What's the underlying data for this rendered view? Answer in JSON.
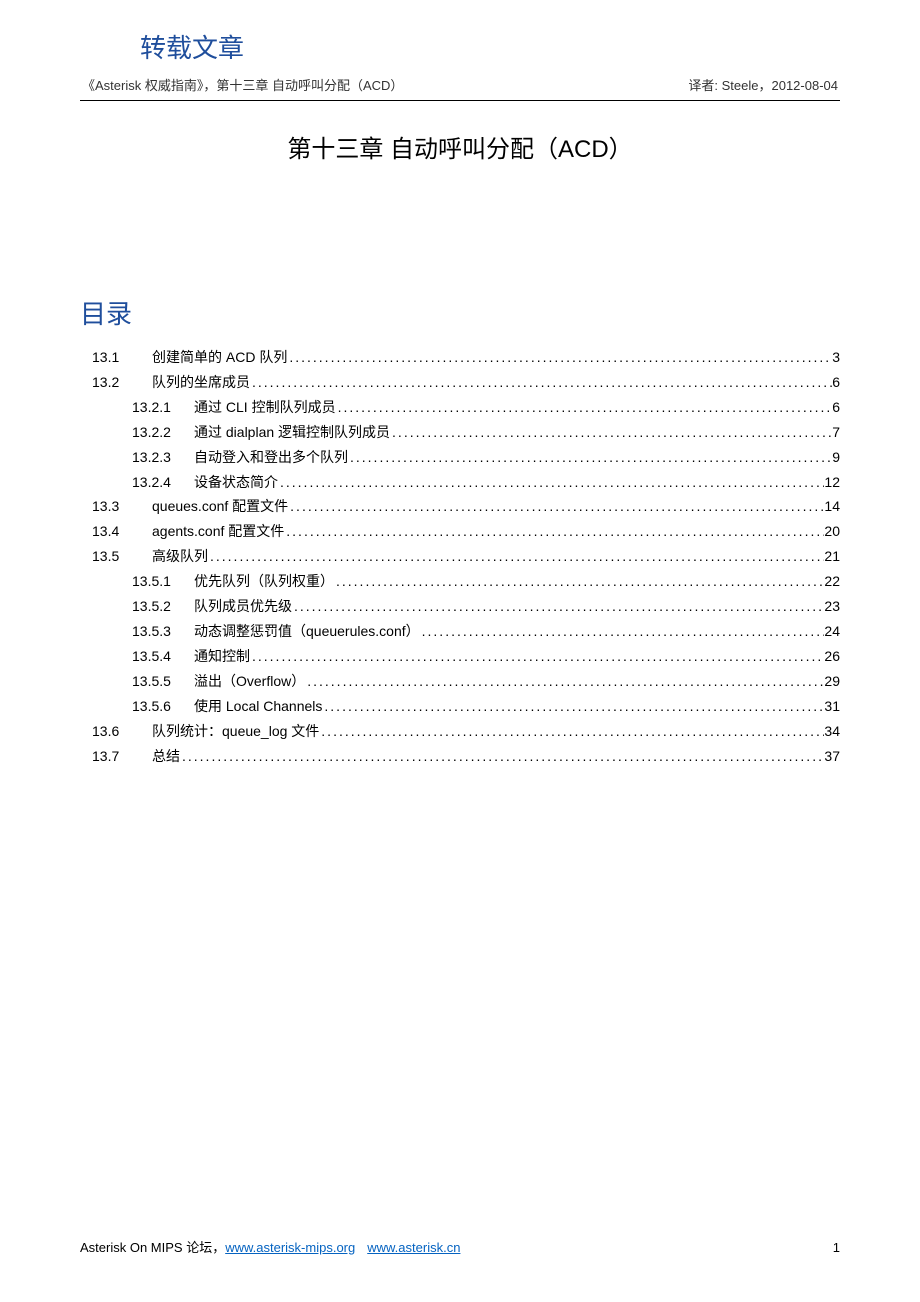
{
  "header": {
    "site_title": "转载文章",
    "doc_left": "《Asterisk 权威指南》，第十三章  自动呼叫分配（ACD）",
    "doc_right": "译者: Steele，2012-08-04"
  },
  "chapter_title": "第十三章  自动呼叫分配（ACD）",
  "toc_title": "目录",
  "toc": [
    {
      "level": 1,
      "num": "13.1",
      "text": "创建简单的 ACD 队列",
      "page": "3"
    },
    {
      "level": 1,
      "num": "13.2",
      "text": "队列的坐席成员",
      "page": "6"
    },
    {
      "level": 2,
      "num": "13.2.1",
      "text": "通过 CLI 控制队列成员",
      "page": "6"
    },
    {
      "level": 2,
      "num": "13.2.2",
      "text": "通过 dialplan 逻辑控制队列成员",
      "page": "7"
    },
    {
      "level": 2,
      "num": "13.2.3",
      "text": "自动登入和登出多个队列",
      "page": "9"
    },
    {
      "level": 2,
      "num": "13.2.4",
      "text": "设备状态简介",
      "page": "12"
    },
    {
      "level": 1,
      "num": "13.3",
      "text": "queues.conf 配置文件",
      "page": "14"
    },
    {
      "level": 1,
      "num": "13.4",
      "text": "agents.conf 配置文件",
      "page": "20"
    },
    {
      "level": 1,
      "num": "13.5",
      "text": "高级队列",
      "page": "21"
    },
    {
      "level": 2,
      "num": "13.5.1",
      "text": "优先队列（队列权重）",
      "page": "22"
    },
    {
      "level": 2,
      "num": "13.5.2",
      "text": "队列成员优先级",
      "page": "23"
    },
    {
      "level": 2,
      "num": "13.5.3",
      "text": "动态调整惩罚值（queuerules.conf）",
      "page": "24"
    },
    {
      "level": 2,
      "num": "13.5.4",
      "text": "通知控制",
      "page": "26"
    },
    {
      "level": 2,
      "num": "13.5.5",
      "text": "溢出（Overflow）",
      "page": "29"
    },
    {
      "level": 2,
      "num": "13.5.6",
      "text": "使用 Local Channels",
      "page": "31"
    },
    {
      "level": 1,
      "num": "13.6",
      "text": "队列统计：queue_log 文件",
      "page": "34"
    },
    {
      "level": 1,
      "num": "13.7",
      "text": "总结",
      "page": "37"
    }
  ],
  "footer": {
    "prefix": "Asterisk On MIPS 论坛，",
    "link1_text": "www.asterisk-mips.org",
    "link2_text": "www.asterisk.cn",
    "page_number": "1"
  },
  "colors": {
    "heading_blue": "#1f4e9c",
    "link_blue": "#0563c1",
    "text": "#000000",
    "background": "#ffffff"
  },
  "typography": {
    "site_title_fontsize": 26,
    "chapter_title_fontsize": 24,
    "toc_title_fontsize": 26,
    "body_fontsize": 14,
    "meta_fontsize": 13
  }
}
